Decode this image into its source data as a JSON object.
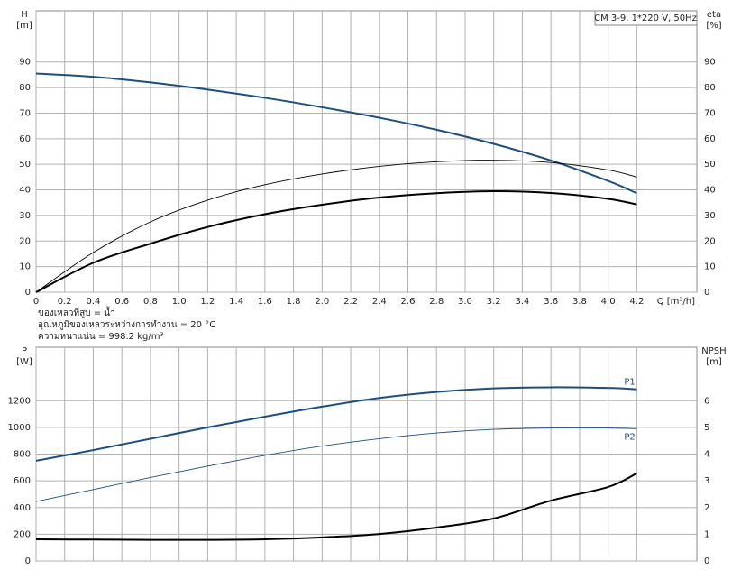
{
  "chart_data": [
    {
      "type": "line",
      "title": "CM 3-9, 1*220 V, 50Hz",
      "ylabel": "H",
      "yunit": "[m]",
      "y2label": "eta",
      "y2unit": "[%]",
      "xlabel": "Q [m³/h]",
      "notes": [
        "ของเหลวที่สูบ = น้ำ",
        "อุณหภูมิของเหลวระหว่างการทำงาน = 20 °C",
        "ความหนาแน่น = 998.2 kg/m³"
      ],
      "xlim": [
        0,
        4.62
      ],
      "ylim": [
        0,
        110
      ],
      "y2lim": [
        0,
        110
      ],
      "xticks": [
        0,
        0.2,
        0.4,
        0.6,
        0.8,
        {
          "value": 1,
          "label": "1.0"
        },
        1.2,
        1.4,
        1.6,
        1.8,
        {
          "value": 2,
          "label": "2.0"
        },
        2.2,
        2.4,
        2.6,
        2.8,
        {
          "value": 3,
          "label": "3.0"
        },
        3.2,
        3.4,
        3.6,
        3.8,
        {
          "value": 4,
          "label": "4.0"
        },
        4.2
      ],
      "yticks": [
        0,
        10,
        20,
        30,
        40,
        50,
        60,
        70,
        80,
        90
      ],
      "y2ticks": [
        0,
        10,
        20,
        30,
        40,
        50,
        60,
        70,
        80,
        90
      ],
      "xticklabels": true,
      "grid": true,
      "x": [
        0,
        0.4,
        0.8,
        1.2,
        1.6,
        2.0,
        2.4,
        2.8,
        3.2,
        3.6,
        4.0,
        4.2
      ],
      "series": [
        {
          "color": "#1c4f80",
          "style": "thick",
          "values": [
            85.5,
            84.2,
            82,
            79.2,
            76,
            72.3,
            68.2,
            63.5,
            58,
            51.5,
            43.5,
            38.7
          ]
        },
        {
          "color": "#000000",
          "style": "thin",
          "axis": "y2",
          "values": [
            0,
            15.5,
            27.5,
            36,
            42,
            46.2,
            49.2,
            51,
            51.6,
            50.7,
            47.8,
            45
          ]
        },
        {
          "color": "#000000",
          "style": "thick",
          "axis": "y2",
          "values": [
            0,
            11.5,
            19,
            25.5,
            30.5,
            34.2,
            37,
            38.7,
            39.5,
            38.8,
            36.5,
            34.3
          ]
        }
      ]
    },
    {
      "type": "line",
      "ylabel": "P",
      "yunit": "[W]",
      "y2label": "NPSH",
      "y2unit": "[m]",
      "xlim": [
        0,
        4.62
      ],
      "ylim": [
        0,
        1600
      ],
      "y2lim": [
        0,
        8
      ],
      "xticks": [
        0,
        0.2,
        0.4,
        0.6,
        0.8,
        1,
        1.2,
        1.4,
        1.6,
        1.8,
        2,
        2.2,
        2.4,
        2.6,
        2.8,
        3,
        3.2,
        3.4,
        3.6,
        3.8,
        4,
        4.2
      ],
      "yticks": [
        0,
        200,
        400,
        600,
        800,
        1000,
        1200
      ],
      "y2ticks": [
        0,
        1,
        2,
        3,
        4,
        5,
        6
      ],
      "xticklabels": false,
      "grid": true,
      "x": [
        0,
        0.4,
        0.8,
        1.2,
        1.6,
        2.0,
        2.4,
        2.8,
        3.2,
        3.6,
        4.0,
        4.2
      ],
      "series": [
        {
          "name": "P1",
          "color": "#1c4f80",
          "style": "thick",
          "values": [
            750,
            830,
            915,
            1000,
            1080,
            1155,
            1220,
            1265,
            1292,
            1300,
            1295,
            1285
          ]
        },
        {
          "name": "P2",
          "color": "#1c4f80",
          "style": "thin",
          "values": [
            445,
            535,
            625,
            710,
            790,
            860,
            915,
            958,
            985,
            995,
            995,
            990
          ]
        },
        {
          "color": "#000000",
          "style": "thick",
          "axis": "y2",
          "values": [
            0.81,
            0.8,
            0.79,
            0.79,
            0.81,
            0.88,
            1.01,
            1.25,
            1.59,
            2.26,
            2.77,
            3.28
          ]
        }
      ]
    }
  ]
}
